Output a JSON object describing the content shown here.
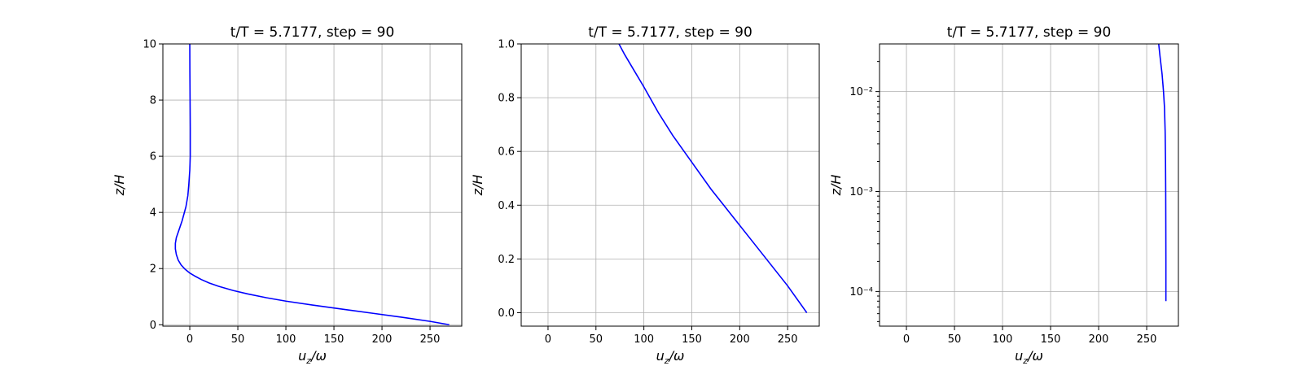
{
  "chart_data": [
    {
      "type": "line",
      "title": "t/T = 5.7177, step = 90",
      "xlabel": "u_z/ω",
      "ylabel": "z/H",
      "xlim": [
        -28,
        283
      ],
      "ylim": [
        -0.05,
        10
      ],
      "yscale": "linear",
      "grid": true,
      "xticks": [
        0,
        50,
        100,
        150,
        200,
        250
      ],
      "yticks": [
        0,
        2,
        4,
        6,
        8,
        10
      ],
      "color": "#0000ff",
      "series": [
        {
          "x": [
            270,
            250,
            220,
            190,
            160,
            130,
            100,
            80,
            60,
            45,
            30,
            20,
            12,
            6,
            0,
            -5,
            -9,
            -12,
            -14,
            -15,
            -15,
            -14,
            -12,
            -10,
            -8,
            -6,
            -4,
            -2,
            -1,
            0,
            0.5,
            0.5,
            0.3,
            0.1,
            0
          ],
          "y": [
            0,
            0.12,
            0.27,
            0.41,
            0.55,
            0.69,
            0.84,
            0.96,
            1.1,
            1.22,
            1.37,
            1.49,
            1.61,
            1.72,
            1.84,
            1.98,
            2.13,
            2.3,
            2.5,
            2.7,
            2.9,
            3.1,
            3.3,
            3.5,
            3.7,
            3.95,
            4.2,
            4.6,
            5.0,
            5.5,
            6.0,
            7.0,
            8.0,
            9.0,
            10
          ]
        }
      ]
    },
    {
      "type": "line",
      "title": "t/T = 5.7177, step = 90",
      "xlabel": "u_z/ω",
      "ylabel": "z/H",
      "xlim": [
        -28,
        283
      ],
      "ylim": [
        -0.05,
        1.0
      ],
      "yscale": "linear",
      "grid": true,
      "xticks": [
        0,
        50,
        100,
        150,
        200,
        250
      ],
      "yticks": [
        0.0,
        0.2,
        0.4,
        0.6,
        0.8,
        1.0
      ],
      "color": "#0000ff",
      "series": [
        {
          "x": [
            270,
            250,
            230,
            210,
            190,
            170,
            150,
            130,
            115,
            100,
            90,
            80,
            74
          ],
          "y": [
            0,
            0.1,
            0.19,
            0.28,
            0.37,
            0.46,
            0.56,
            0.66,
            0.745,
            0.84,
            0.9,
            0.96,
            1.0
          ]
        }
      ]
    },
    {
      "type": "line",
      "title": "t/T = 5.7177, step = 90",
      "xlabel": "u_z/ω",
      "ylabel": "z/H",
      "xlim": [
        -28,
        283
      ],
      "ylim": [
        4.5e-05,
        0.03
      ],
      "yscale": "log",
      "grid": true,
      "xticks": [
        0,
        50,
        100,
        150,
        200,
        250
      ],
      "yticks": [
        0.0001,
        0.001,
        0.01
      ],
      "ytick_labels": [
        "10⁻⁴",
        "10⁻³",
        "10⁻²"
      ],
      "color": "#0000ff",
      "series": [
        {
          "x": [
            270,
            270,
            269.9,
            269.8,
            269.6,
            269.2,
            268.5,
            267.5,
            266,
            264,
            262.5
          ],
          "y": [
            8e-05,
            0.0002,
            0.0005,
            0.001,
            0.002,
            0.004,
            0.007,
            0.01,
            0.015,
            0.022,
            0.03
          ]
        }
      ]
    }
  ]
}
